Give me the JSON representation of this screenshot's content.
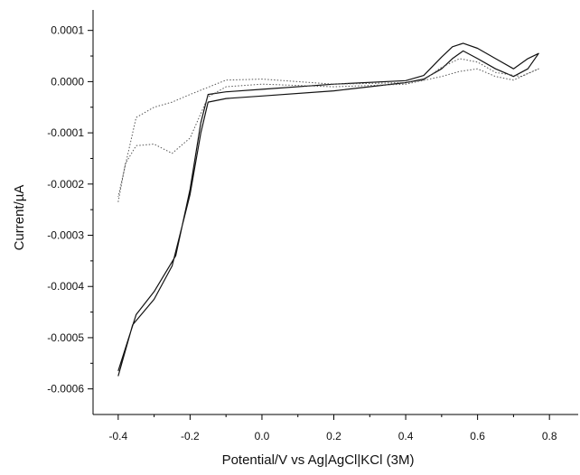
{
  "chart_data": {
    "type": "line",
    "title": "",
    "xlabel": "Potential/V vs Ag|AgCl|KCl (3M)",
    "ylabel": "Current/µA",
    "xlim": [
      -0.47,
      0.88
    ],
    "ylim": [
      -0.00065,
      0.00014
    ],
    "x_ticks": [
      -0.4,
      -0.2,
      0.0,
      0.2,
      0.4,
      0.6,
      0.8
    ],
    "x_tick_labels": [
      "-0.4",
      "-0.2",
      "0.0",
      "0.2",
      "0.4",
      "0.6",
      "0.8"
    ],
    "y_ticks": [
      0.0001,
      0.0,
      -0.0001,
      -0.0002,
      -0.0003,
      -0.0004,
      -0.0005,
      -0.0006
    ],
    "y_tick_labels": [
      "0.0001",
      "0.0000",
      "-0.0001",
      "-0.0002",
      "-0.0003",
      "-0.0004",
      "-0.0005",
      "-0.0006"
    ],
    "grid": false,
    "legend": "none",
    "series": [
      {
        "style": "solid",
        "x": [
          -0.4,
          -0.36,
          -0.3,
          -0.25,
          -0.2,
          -0.17,
          -0.15,
          -0.1,
          0.0,
          0.2,
          0.4,
          0.45,
          0.5,
          0.53,
          0.56,
          0.6,
          0.65,
          0.7,
          0.74,
          0.77,
          0.74,
          0.7,
          0.65,
          0.6,
          0.56,
          0.53,
          0.5,
          0.45,
          0.4,
          0.2,
          0.0,
          -0.1,
          -0.15,
          -0.17,
          -0.2,
          -0.24,
          -0.3,
          -0.35,
          -0.4
        ],
        "y": [
          -0.000575,
          -0.000475,
          -0.000425,
          -0.00036,
          -0.00022,
          -0.0001,
          -4e-05,
          -3.3e-05,
          -2.8e-05,
          -1.8e-05,
          -2e-06,
          5e-06,
          2.5e-05,
          4.5e-05,
          6e-05,
          4.5e-05,
          2.5e-05,
          1e-05,
          2.5e-05,
          5.5e-05,
          4.5e-05,
          2.5e-05,
          4.5e-05,
          6.5e-05,
          7.5e-05,
          6.8e-05,
          4.8e-05,
          1.2e-05,
          2e-06,
          -5e-06,
          -1.5e-05,
          -2e-05,
          -2.5e-05,
          -8e-05,
          -0.00021,
          -0.00034,
          -0.00041,
          -0.000455,
          -0.000565
        ]
      },
      {
        "style": "dotted",
        "x": [
          -0.4,
          -0.38,
          -0.35,
          -0.3,
          -0.25,
          -0.2,
          -0.15,
          -0.1,
          0.0,
          0.2,
          0.4,
          0.5,
          0.55,
          0.6,
          0.65,
          0.7,
          0.77,
          0.72,
          0.65,
          0.6,
          0.55,
          0.5,
          0.45,
          0.4,
          0.2,
          0.0,
          -0.1,
          -0.2,
          -0.25,
          -0.3,
          -0.35,
          -0.4
        ],
        "y": [
          -0.000235,
          -0.00016,
          -0.000125,
          -0.000122,
          -0.00014,
          -0.00011,
          -3e-05,
          -1e-05,
          -5e-06,
          -1e-05,
          -5e-06,
          1e-05,
          2e-05,
          2.5e-05,
          1e-05,
          3e-06,
          2.5e-05,
          1e-05,
          1.8e-05,
          3.8e-05,
          4.5e-05,
          2.8e-05,
          3e-06,
          -2e-06,
          -5e-06,
          5e-06,
          3e-06,
          -2.5e-05,
          -4e-05,
          -5e-05,
          -7e-05,
          -0.000225
        ]
      }
    ]
  }
}
